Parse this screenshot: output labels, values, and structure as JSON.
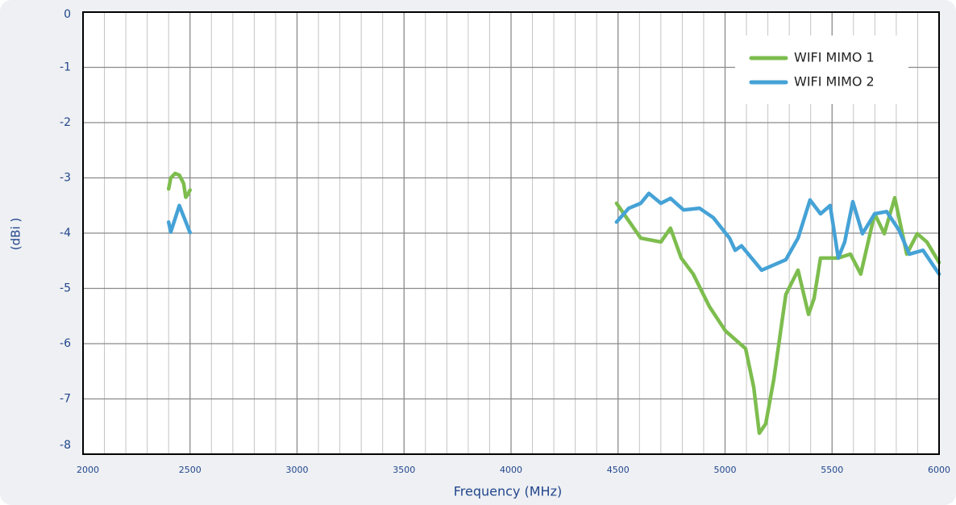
{
  "chart_data": {
    "type": "line",
    "xlabel": "Frequency (MHz)",
    "ylabel": "(dBi )",
    "xlim": [
      2000,
      6000
    ],
    "ylim": [
      -8,
      0
    ],
    "xticks": [
      2000,
      2500,
      3000,
      3500,
      4000,
      4500,
      5000,
      5500,
      6000
    ],
    "yticks": [
      0,
      -1,
      -2,
      -3,
      -4,
      -5,
      -6,
      -7,
      -8
    ],
    "x_minor_ticks": [
      2100,
      2200,
      2300,
      2400,
      2600,
      2700,
      2800,
      2900,
      3100,
      3200,
      3300,
      3400,
      3600,
      3700,
      3800,
      3900,
      4100,
      4200,
      4300,
      4400,
      4600,
      4700,
      4800,
      4900,
      5100,
      5200,
      5300,
      5400,
      5600,
      5700,
      5800,
      5900
    ],
    "grid": true,
    "legend": "upper right",
    "series": [
      {
        "name": "WIFI MIMO 1",
        "color": "#7dbd4e",
        "x": [
          2400,
          2410,
          2430,
          2450,
          2470,
          2480,
          2490,
          2500,
          null,
          4493,
          4606,
          4700,
          4745,
          4795,
          4851,
          4927,
          5002,
          5096,
          5134,
          5160,
          5190,
          5228,
          5284,
          5341,
          5390,
          5416,
          5446,
          5529,
          5586,
          5634,
          5699,
          5744,
          5793,
          5849,
          5898,
          5943,
          6000
        ],
        "values": [
          -3.2,
          -3.0,
          -2.92,
          -2.95,
          -3.1,
          -3.35,
          -3.3,
          -3.22,
          null,
          -3.46,
          -4.09,
          -4.16,
          -3.91,
          -4.45,
          -4.74,
          -5.33,
          -5.77,
          -6.09,
          -6.79,
          -7.62,
          -7.45,
          -6.64,
          -5.11,
          -4.67,
          -5.47,
          -5.18,
          -4.45,
          -4.45,
          -4.38,
          -4.74,
          -3.65,
          -4.01,
          -3.36,
          -4.38,
          -4.01,
          -4.16,
          -4.53
        ]
      },
      {
        "name": "WIFI MIMO 2",
        "color": "#45a2d6",
        "x": [
          2400,
          2410,
          2450,
          2500,
          null,
          4493,
          4550,
          4606,
          4644,
          4700,
          4745,
          4806,
          4881,
          4945,
          5021,
          5047,
          5077,
          5171,
          5284,
          5341,
          5397,
          5446,
          5491,
          5529,
          5559,
          5597,
          5642,
          5699,
          5755,
          5812,
          5861,
          5925,
          6000
        ],
        "values": [
          -3.8,
          -3.98,
          -3.5,
          -3.99,
          null,
          -3.8,
          -3.55,
          -3.46,
          -3.28,
          -3.46,
          -3.37,
          -3.58,
          -3.55,
          -3.72,
          -4.09,
          -4.31,
          -4.23,
          -4.67,
          -4.48,
          -4.09,
          -3.4,
          -3.65,
          -3.5,
          -4.45,
          -4.16,
          -3.43,
          -4.01,
          -3.65,
          -3.61,
          -3.94,
          -4.38,
          -4.31,
          -4.74
        ]
      }
    ]
  }
}
